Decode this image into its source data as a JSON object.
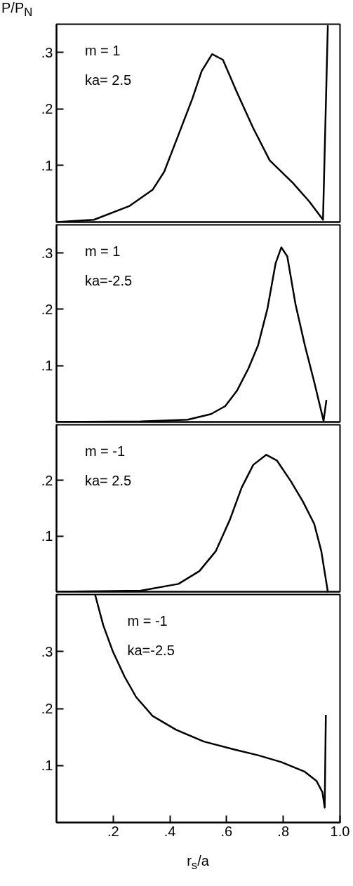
{
  "chart_data": [
    {
      "type": "line",
      "ylabel": "P/P$_{N}$",
      "annotations": [
        "m = 1",
        "ka= 2.5"
      ],
      "tick_labels": "y",
      "xlim": [
        0,
        1.0
      ],
      "ylim": [
        0,
        0.35
      ],
      "yticks": [
        {
          "value": 0.1,
          "label": ".1"
        },
        {
          "value": 0.2,
          "label": ".2"
        },
        {
          "value": 0.3,
          "label": ".3"
        }
      ],
      "x": [
        0.002,
        0.132,
        0.256,
        0.339,
        0.38,
        0.43,
        0.479,
        0.512,
        0.549,
        0.587,
        0.636,
        0.694,
        0.752,
        0.785,
        0.834,
        0.892,
        0.94,
        0.957
      ],
      "series": [
        {
          "color": "#000000",
          "values": [
            0,
            0.004,
            0.028,
            0.057,
            0.089,
            0.154,
            0.218,
            0.267,
            0.297,
            0.287,
            0.23,
            0.166,
            0.109,
            0.093,
            0.069,
            0.036,
            0.004,
            0.348
          ]
        }
      ]
    },
    {
      "type": "line",
      "annotations": [
        "m = 1",
        "ka=-2.5"
      ],
      "tick_labels": "y",
      "xlim": [
        0,
        1.0
      ],
      "ylim": [
        0,
        0.35
      ],
      "yticks": [
        {
          "value": 0.1,
          "label": ".1"
        },
        {
          "value": 0.2,
          "label": ".2"
        },
        {
          "value": 0.3,
          "label": ".3"
        }
      ],
      "x": [
        0.0,
        0.297,
        0.463,
        0.545,
        0.595,
        0.636,
        0.677,
        0.711,
        0.744,
        0.773,
        0.793,
        0.814,
        0.843,
        0.876,
        0.909,
        0.942,
        0.952
      ],
      "series": [
        {
          "color": "#000000",
          "values": [
            0,
            0.001,
            0.004,
            0.014,
            0.028,
            0.055,
            0.095,
            0.136,
            0.201,
            0.282,
            0.31,
            0.294,
            0.209,
            0.136,
            0.071,
            0.002,
            0.039
          ]
        }
      ]
    },
    {
      "type": "line",
      "annotations": [
        "m = -1",
        "ka=  2.5"
      ],
      "tick_labels": "y",
      "xlim": [
        0,
        1.0
      ],
      "ylim": [
        0,
        0.3
      ],
      "yticks": [
        {
          "value": 0.1,
          "label": ".1"
        },
        {
          "value": 0.2,
          "label": ".2"
        }
      ],
      "x": [
        0.0,
        0.297,
        0.43,
        0.504,
        0.562,
        0.612,
        0.653,
        0.694,
        0.74,
        0.777,
        0.826,
        0.868,
        0.909,
        0.934,
        0.957
      ],
      "series": [
        {
          "color": "#000000",
          "values": [
            0,
            0.002,
            0.014,
            0.037,
            0.073,
            0.13,
            0.187,
            0.228,
            0.246,
            0.236,
            0.199,
            0.163,
            0.122,
            0.073,
            0
          ]
        }
      ]
    },
    {
      "type": "line",
      "xlabel": "r$_{s}$/a",
      "annotations": [
        "m = -1",
        "ka=-2.5"
      ],
      "xlim": [
        0,
        1.0
      ],
      "ylim": [
        0,
        0.4
      ],
      "xticks": [
        {
          "value": 0.2,
          "label": ".2"
        },
        {
          "value": 0.4,
          "label": ".4"
        },
        {
          "value": 0.6,
          "label": ".6"
        },
        {
          "value": 0.8,
          "label": ".8"
        },
        {
          "value": 1.0,
          "label": "1.0"
        }
      ],
      "yticks": [
        {
          "value": 0.1,
          "label": ".1"
        },
        {
          "value": 0.2,
          "label": ".2"
        },
        {
          "value": 0.3,
          "label": ".3"
        }
      ],
      "x": [
        0.136,
        0.165,
        0.198,
        0.24,
        0.281,
        0.339,
        0.421,
        0.52,
        0.628,
        0.711,
        0.793,
        0.876,
        0.917,
        0.938,
        0.946,
        0.95
      ],
      "series": [
        {
          "color": "#000000",
          "values": [
            0.4,
            0.346,
            0.301,
            0.256,
            0.22,
            0.187,
            0.163,
            0.142,
            0.128,
            0.118,
            0.106,
            0.089,
            0.073,
            0.053,
            0.026,
            0.189
          ]
        }
      ]
    }
  ]
}
